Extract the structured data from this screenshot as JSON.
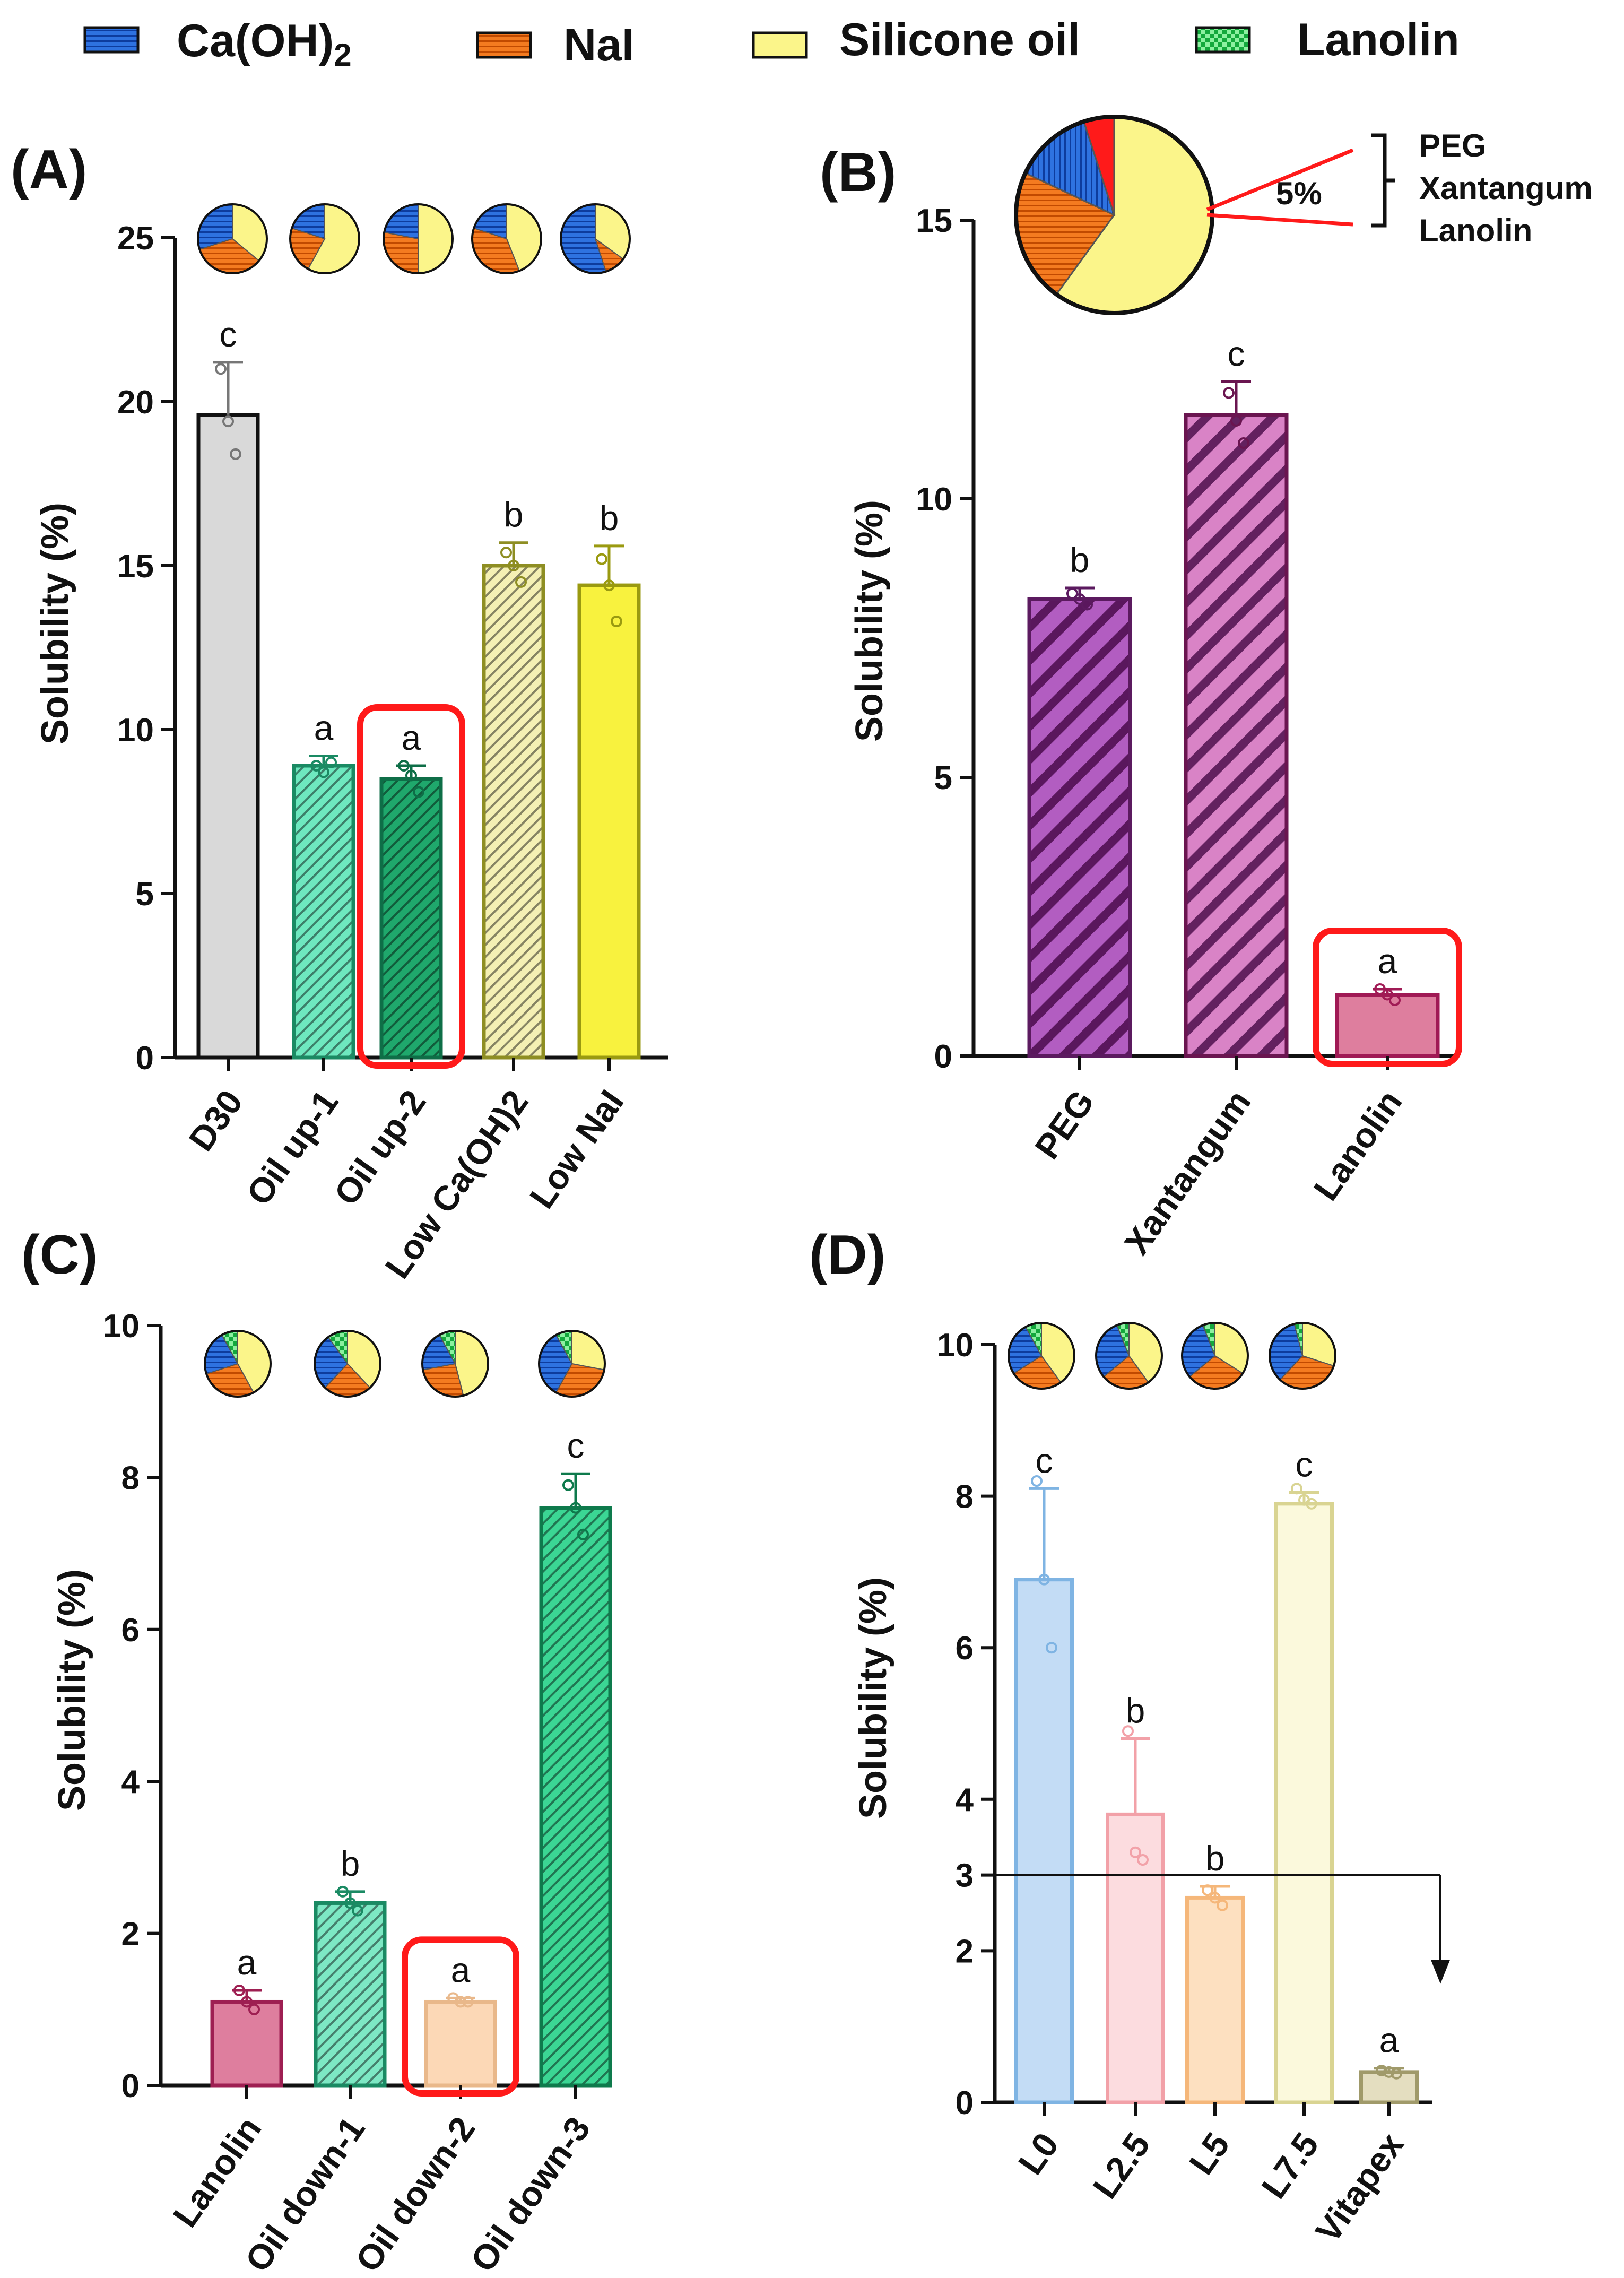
{
  "colors": {
    "axis": "#111111",
    "highlight": "#ff1a1a",
    "ca": "#2e72e0",
    "nai": "#f47b20",
    "oil": "#fbf58a",
    "lanolin": "#13a83c"
  },
  "legend": {
    "items": [
      {
        "label_main": "Ca(OH)",
        "label_sub": "2",
        "color": "#2e72e0",
        "pattern": "hlines"
      },
      {
        "label_main": "NaI",
        "label_sub": "",
        "color": "#f47b20",
        "pattern": "hlines"
      },
      {
        "label_main": "Silicone oil",
        "label_sub": "",
        "color": "#fbf58a",
        "pattern": "solid"
      },
      {
        "label_main": "Lanolin",
        "label_sub": "",
        "color": "#13a83c",
        "pattern": "checker"
      }
    ]
  },
  "panel_b_pie": {
    "percent_label": "5%",
    "bracket_items": [
      "PEG",
      "Xantangum",
      "Lanolin"
    ]
  },
  "panel_d_arrow": {
    "y_value": 3,
    "label": "3"
  },
  "chart_data": [
    {
      "type": "bar",
      "panel": "(A)",
      "ylabel": "Solubility (%)",
      "ylim": [
        0,
        25
      ],
      "yticks": [
        0,
        5,
        10,
        15,
        20,
        25
      ],
      "categories": [
        "D30",
        "Oil up-1",
        "Oil up-2",
        "Low Ca(OH)2",
        "Low NaI"
      ],
      "values": [
        19.6,
        8.9,
        8.5,
        15.0,
        14.4
      ],
      "errors": [
        1.6,
        0.3,
        0.4,
        0.7,
        1.2
      ],
      "points": [
        [
          21.0,
          19.4,
          18.4
        ],
        [
          8.9,
          8.7,
          9.0
        ],
        [
          8.9,
          8.6,
          8.1
        ],
        [
          15.4,
          15.0,
          14.5
        ],
        [
          15.2,
          14.4,
          13.3
        ]
      ],
      "significance": [
        "c",
        "a",
        "a",
        "b",
        "b"
      ],
      "fills": [
        "#d9d9d9",
        "#6ee8bf",
        "#1fa86c",
        "#f4f0b4",
        "#f8f23e"
      ],
      "edges": [
        "#111111",
        "#1a8a63",
        "#0e6e47",
        "#8e8e23",
        "#9a9a10"
      ],
      "hatch": [
        "none",
        "dense",
        "dense",
        "dense",
        "none"
      ],
      "highlight_index": 2,
      "inset_pies": [
        [
          0.36,
          0.34,
          0.3,
          0.0
        ],
        [
          0.58,
          0.22,
          0.2,
          0.0
        ],
        [
          0.5,
          0.28,
          0.22,
          0.0
        ],
        [
          0.44,
          0.36,
          0.2,
          0.0
        ],
        [
          0.35,
          0.1,
          0.55,
          0.0
        ]
      ]
    },
    {
      "type": "bar",
      "panel": "(B)",
      "ylabel": "Solubility (%)",
      "ylim": [
        0,
        15
      ],
      "yticks": [
        0,
        5,
        10,
        15
      ],
      "categories": [
        "PEG",
        "Xantangum",
        "Lanolin"
      ],
      "values": [
        8.2,
        11.5,
        1.1
      ],
      "errors": [
        0.2,
        0.6,
        0.1
      ],
      "points": [
        [
          8.3,
          8.2,
          8.1
        ],
        [
          11.9,
          11.4,
          11.0
        ],
        [
          1.2,
          1.1,
          1.0
        ]
      ],
      "significance": [
        "b",
        "c",
        "a"
      ],
      "fills": [
        "#b25dc1",
        "#d983c6",
        "#de7e9e"
      ],
      "edges": [
        "#5b1a5f",
        "#6a1550",
        "#a01a55"
      ],
      "hatch": [
        "wide",
        "wide",
        "none"
      ],
      "highlight_index": 2,
      "main_pie": [
        0.6,
        0.22,
        0.13,
        0.05
      ]
    },
    {
      "type": "bar",
      "panel": "(C)",
      "ylabel": "Solubility (%)",
      "ylim": [
        0,
        10
      ],
      "yticks": [
        0,
        2,
        4,
        6,
        8,
        10
      ],
      "categories": [
        "Lanolin",
        "Oil down-1",
        "Oil down-2",
        "Oil down-3"
      ],
      "values": [
        1.1,
        2.4,
        1.1,
        7.6
      ],
      "errors": [
        0.15,
        0.15,
        0.05,
        0.45
      ],
      "points": [
        [
          1.25,
          1.1,
          1.0
        ],
        [
          2.55,
          2.4,
          2.3
        ],
        [
          1.15,
          1.1,
          1.1
        ],
        [
          7.9,
          7.6,
          7.25
        ]
      ],
      "significance": [
        "a",
        "b",
        "a",
        "c"
      ],
      "fills": [
        "#de7e9e",
        "#7de8c4",
        "#fcd8b6",
        "#3bd694"
      ],
      "edges": [
        "#9e1f52",
        "#1a8a63",
        "#e9b88a",
        "#0e7a4c"
      ],
      "hatch": [
        "none",
        "dense",
        "none",
        "dense"
      ],
      "highlight_index": 2,
      "inset_pies": [
        [
          0.42,
          0.28,
          0.22,
          0.08
        ],
        [
          0.38,
          0.24,
          0.28,
          0.1
        ],
        [
          0.46,
          0.26,
          0.2,
          0.08
        ],
        [
          0.28,
          0.3,
          0.34,
          0.08
        ]
      ]
    },
    {
      "type": "bar",
      "panel": "(D)",
      "ylabel": "Solubility (%)",
      "ylim": [
        0,
        10
      ],
      "yticks": [
        0,
        2,
        3,
        4,
        6,
        8,
        10
      ],
      "categories": [
        "L0",
        "L2.5",
        "L5",
        "L7.5",
        "Vitapex"
      ],
      "values": [
        6.9,
        3.8,
        2.7,
        7.9,
        0.4
      ],
      "errors": [
        1.2,
        1.0,
        0.15,
        0.15,
        0.05
      ],
      "points": [
        [
          8.2,
          6.9,
          6.0
        ],
        [
          4.9,
          3.3,
          3.2
        ],
        [
          2.8,
          2.7,
          2.6
        ],
        [
          8.1,
          7.95,
          7.9
        ],
        [
          0.42,
          0.4,
          0.38
        ]
      ],
      "significance": [
        "c",
        "b",
        "b",
        "c",
        "a"
      ],
      "fills": [
        "#c3dcf5",
        "#fcdcdf",
        "#fde0c0",
        "#fbf9dc",
        "#e4dec0"
      ],
      "edges": [
        "#7fb4e3",
        "#f2a1a8",
        "#f5b77a",
        "#d9d492",
        "#a09a6a"
      ],
      "hatch": [
        "none",
        "none",
        "none",
        "none",
        "none"
      ],
      "highlight_index": -1,
      "inset_pies": [
        [
          0.4,
          0.26,
          0.26,
          0.08
        ],
        [
          0.4,
          0.24,
          0.3,
          0.06
        ],
        [
          0.34,
          0.3,
          0.3,
          0.06
        ],
        [
          0.3,
          0.32,
          0.34,
          0.04
        ]
      ]
    }
  ]
}
